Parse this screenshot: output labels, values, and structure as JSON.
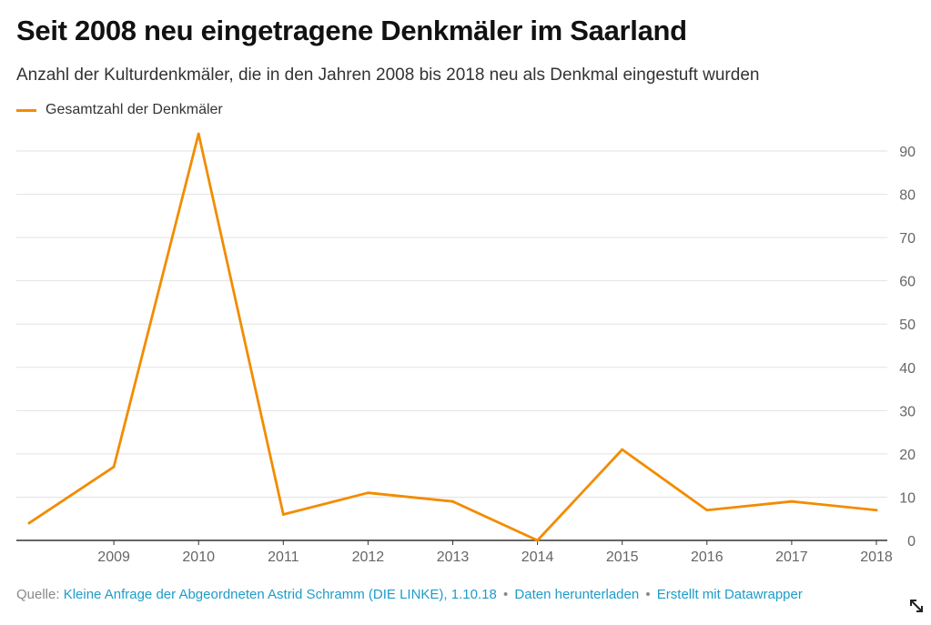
{
  "header": {
    "title": "Seit 2008 neu eingetragene Denkmäler im Saarland",
    "subtitle": "Anzahl der Kulturdenkmäler, die in den Jahren 2008 bis 2018 neu als Denkmal eingestuft wurden"
  },
  "legend": {
    "label": "Gesamtzahl der Denkmäler"
  },
  "footer": {
    "source_prefix": "Quelle: ",
    "source_link": "Kleine Anfrage der Abgeordneten Astrid Schramm (DIE LINKE), 1.10.18",
    "separator": "•",
    "download_link": "Daten herunterladen",
    "made_with_link": "Erstellt mit Datawrapper"
  },
  "icons": {
    "expand": "expand-icon"
  },
  "colors": {
    "line": "#f28c00",
    "grid": "#e2e2e2",
    "axis": "#333333",
    "tick_text": "#666666",
    "link": "#1d9cc9"
  },
  "chart_data": {
    "type": "line",
    "title": "Seit 2008 neu eingetragene Denkmäler im Saarland",
    "subtitle": "Anzahl der Kulturdenkmäler, die in den Jahren 2008 bis 2018 neu als Denkmal eingestuft wurden",
    "xlabel": "",
    "ylabel": "",
    "x": [
      2008,
      2009,
      2010,
      2011,
      2012,
      2013,
      2014,
      2015,
      2016,
      2017,
      2018
    ],
    "x_tick_labels": [
      "2009",
      "2010",
      "2011",
      "2012",
      "2013",
      "2014",
      "2015",
      "2016",
      "2017",
      "2018"
    ],
    "series": [
      {
        "name": "Gesamtzahl der Denkmäler",
        "values": [
          4,
          17,
          94,
          6,
          11,
          9,
          0,
          21,
          7,
          9,
          7
        ]
      }
    ],
    "ylim": [
      0,
      94
    ],
    "y_ticks": [
      0,
      10,
      20,
      30,
      40,
      50,
      60,
      70,
      80,
      90
    ],
    "y_tick_labels": [
      "0",
      "10",
      "20",
      "30",
      "40",
      "50",
      "60",
      "70",
      "80",
      "90"
    ],
    "y_axis_side": "right",
    "grid": true,
    "legend_position": "top-left"
  }
}
